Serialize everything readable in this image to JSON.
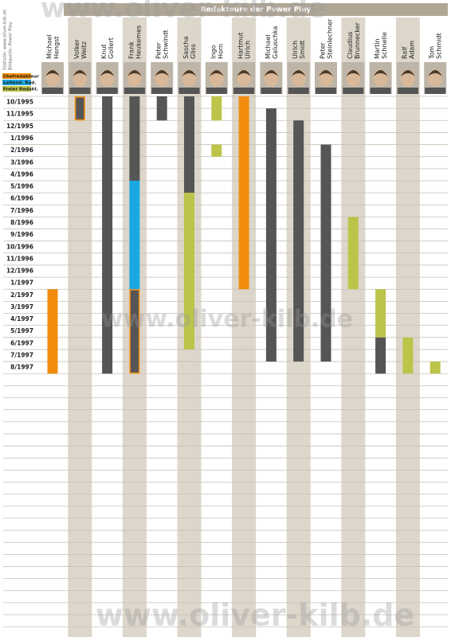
{
  "chart_data": {
    "type": "timeline",
    "title": "Redakteure der Power Play",
    "source_notes": [
      "Statistik: www.oliver-kilb.de",
      "Bildquelle: Power Play"
    ],
    "watermark": "www.oliver-kilb.de",
    "legend": [
      {
        "name": "Chefredakteur",
        "color": "#f28c0f"
      },
      {
        "name": "Leitend. Red.",
        "color": "#1ba8e0"
      },
      {
        "name": "Freier Redakt.",
        "color": "#bcc44a"
      }
    ],
    "categories": [
      "10/1995",
      "11/1995",
      "12/1995",
      "1/1996",
      "2/1996",
      "3/1996",
      "4/1996",
      "5/1996",
      "6/1996",
      "7/1996",
      "8/1996",
      "9/1996",
      "10/1996",
      "11/1996",
      "12/1996",
      "1/1997",
      "2/1997",
      "3/1997",
      "4/1997",
      "5/1997",
      "6/1997",
      "7/1997",
      "8/1997"
    ],
    "series": [
      {
        "name": [
          "Michael",
          "Hengst"
        ],
        "segments": [
          {
            "start": 16,
            "end": 22,
            "color": "#f28c0f"
          }
        ]
      },
      {
        "name": [
          "Volker",
          "Weitz"
        ],
        "segments": [
          {
            "start": 0,
            "end": 1,
            "color": "#555555",
            "border": "#f28c0f"
          }
        ]
      },
      {
        "name": [
          "Knut",
          "Gollert"
        ],
        "segments": [
          {
            "start": 0,
            "end": 22,
            "color": "#555555"
          }
        ]
      },
      {
        "name": [
          "Frank",
          "Heukemes"
        ],
        "segments": [
          {
            "start": 0,
            "end": 6,
            "color": "#555555"
          },
          {
            "start": 7,
            "end": 15,
            "color": "#1ba8e0"
          },
          {
            "start": 16,
            "end": 22,
            "color": "#555555",
            "border": "#f28c0f"
          }
        ]
      },
      {
        "name": [
          "Peter",
          "Schwindt"
        ],
        "segments": [
          {
            "start": 0,
            "end": 1,
            "color": "#555555"
          }
        ]
      },
      {
        "name": [
          "Sascha",
          "Gliss"
        ],
        "segments": [
          {
            "start": 0,
            "end": 7,
            "color": "#555555"
          },
          {
            "start": 8,
            "end": 20,
            "color": "#bcc44a"
          }
        ]
      },
      {
        "name": [
          "Ingo",
          "Horn"
        ],
        "segments": [
          {
            "start": 0,
            "end": 1,
            "color": "#bcc44a"
          },
          {
            "start": 4,
            "end": 4,
            "color": "#bcc44a"
          }
        ]
      },
      {
        "name": [
          "Hartmut",
          "Ulrich"
        ],
        "segments": [
          {
            "start": 0,
            "end": 15,
            "color": "#f28c0f"
          }
        ]
      },
      {
        "name": [
          "Michael",
          "Galuschka"
        ],
        "segments": [
          {
            "start": 1,
            "end": 21,
            "color": "#555555"
          }
        ]
      },
      {
        "name": [
          "Ulrich",
          "Smidt"
        ],
        "segments": [
          {
            "start": 2,
            "end": 21,
            "color": "#555555"
          }
        ]
      },
      {
        "name": [
          "Peter",
          "Steinlechner"
        ],
        "segments": [
          {
            "start": 4,
            "end": 21,
            "color": "#555555"
          }
        ]
      },
      {
        "name": [
          "Claudius",
          "Brunnecker"
        ],
        "segments": [
          {
            "start": 10,
            "end": 15,
            "color": "#bcc44a"
          }
        ]
      },
      {
        "name": [
          "Martin",
          "Schnelle"
        ],
        "segments": [
          {
            "start": 16,
            "end": 19,
            "color": "#bcc44a"
          },
          {
            "start": 20,
            "end": 22,
            "color": "#555555"
          }
        ]
      },
      {
        "name": [
          "Ralf",
          "Adam"
        ],
        "segments": [
          {
            "start": 20,
            "end": 22,
            "color": "#bcc44a"
          }
        ]
      },
      {
        "name": [
          "Tom",
          "Schmidt"
        ],
        "segments": [
          {
            "start": 22,
            "end": 22,
            "color": "#bcc44a"
          }
        ]
      }
    ]
  }
}
